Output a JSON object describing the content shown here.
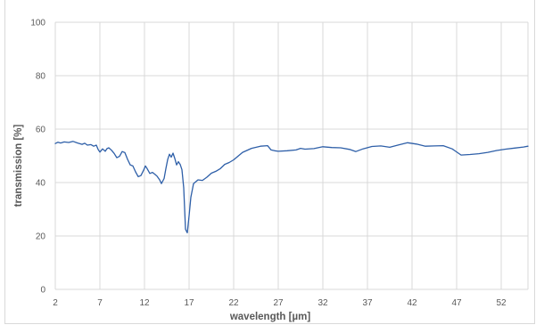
{
  "chart_data": {
    "type": "line",
    "title": "",
    "xlabel": "wavelength [µm]",
    "ylabel": "transmission [%]",
    "xlim": [
      2,
      55
    ],
    "ylim": [
      0,
      100
    ],
    "x_ticks": [
      2,
      7,
      12,
      17,
      22,
      27,
      32,
      37,
      42,
      47,
      52
    ],
    "y_ticks": [
      0,
      20,
      40,
      60,
      80,
      100
    ],
    "grid": true,
    "legend": "none",
    "series": [
      {
        "color": "#2e5fa8",
        "x": [
          2.0,
          2.3,
          2.6,
          3.0,
          3.5,
          4.0,
          4.5,
          4.8,
          5.0,
          5.3,
          5.6,
          6.0,
          6.3,
          6.6,
          6.8,
          7.0,
          7.3,
          7.6,
          7.8,
          8.0,
          8.3,
          8.6,
          8.9,
          9.2,
          9.5,
          9.8,
          10.1,
          10.4,
          10.7,
          11.0,
          11.3,
          11.6,
          11.9,
          12.1,
          12.3,
          12.6,
          12.9,
          13.2,
          13.4,
          13.7,
          13.9,
          14.2,
          14.4,
          14.6,
          14.8,
          15.0,
          15.2,
          15.4,
          15.6,
          15.8,
          16.0,
          16.2,
          16.4,
          16.6,
          16.8,
          17.0,
          17.2,
          17.5,
          18.0,
          18.5,
          19.0,
          19.5,
          20.0,
          20.5,
          21.0,
          21.5,
          22.0,
          23.0,
          24.0,
          25.0,
          25.8,
          26.2,
          26.6,
          27.0,
          28.0,
          29.0,
          29.5,
          30.0,
          31.0,
          32.0,
          33.0,
          34.0,
          35.0,
          35.7,
          36.5,
          37.5,
          38.5,
          39.5,
          40.5,
          41.5,
          42.5,
          43.5,
          44.5,
          45.5,
          46.5,
          47.5,
          48.5,
          49.5,
          50.5,
          51.5,
          52.5,
          53.5,
          54.5,
          55.0
        ],
        "y": [
          54.6,
          55.1,
          54.8,
          55.2,
          55.0,
          55.4,
          54.8,
          54.5,
          54.3,
          54.7,
          54.0,
          54.2,
          53.6,
          54.0,
          52.4,
          51.4,
          52.6,
          51.7,
          52.7,
          53.0,
          52.1,
          50.9,
          49.3,
          49.8,
          51.6,
          51.2,
          48.7,
          46.6,
          46.2,
          44.0,
          42.2,
          42.6,
          44.6,
          46.2,
          45.2,
          43.4,
          43.8,
          43.0,
          42.4,
          41.0,
          39.6,
          41.5,
          45.2,
          48.6,
          50.6,
          49.5,
          51.0,
          49.0,
          46.6,
          47.8,
          46.8,
          44.8,
          38.0,
          22.5,
          21.2,
          27.5,
          34.5,
          39.6,
          41.0,
          40.8,
          42.0,
          43.5,
          44.2,
          45.2,
          46.8,
          47.5,
          48.5,
          51.3,
          52.8,
          53.6,
          53.8,
          52.2,
          51.9,
          51.7,
          51.9,
          52.2,
          52.8,
          52.5,
          52.7,
          53.4,
          53.1,
          53.0,
          52.4,
          51.6,
          52.6,
          53.5,
          53.7,
          53.2,
          54.1,
          54.9,
          54.4,
          53.6,
          53.7,
          53.8,
          52.6,
          50.3,
          50.5,
          50.8,
          51.3,
          52.0,
          52.5,
          52.9,
          53.3,
          53.6
        ]
      }
    ]
  }
}
